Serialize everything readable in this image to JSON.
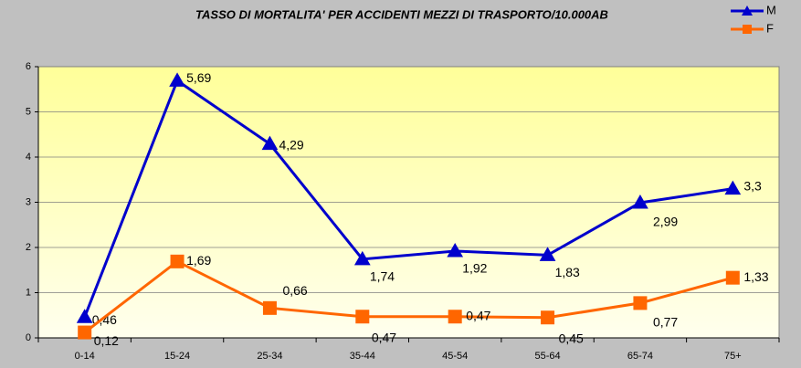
{
  "chart_data": {
    "type": "line",
    "title": "TASSO DI MORTALITA' PER ACCIDENTI MEZZI DI TRASPORTO/10.000AB",
    "categories": [
      "0-14",
      "15-24",
      "25-34",
      "35-44",
      "45-54",
      "55-64",
      "65-74",
      "75+"
    ],
    "series": [
      {
        "name": "M",
        "color": "#0000cc",
        "marker": "triangle",
        "values": [
          0.46,
          5.69,
          4.29,
          1.74,
          1.92,
          1.83,
          2.99,
          3.3
        ],
        "value_labels": [
          "0,46",
          "5,69",
          "4,29",
          "1,74",
          "1,92",
          "1,83",
          "2,99",
          "3,3"
        ]
      },
      {
        "name": "F",
        "color": "#ff6600",
        "marker": "square",
        "values": [
          0.12,
          1.69,
          0.66,
          0.47,
          0.47,
          0.45,
          0.77,
          1.33
        ],
        "value_labels": [
          "0,12",
          "1,69",
          "0,66",
          "0,47",
          "0,47",
          "0,45",
          "0,77",
          "1,33"
        ]
      }
    ],
    "ylim": [
      0,
      6
    ],
    "yticks": [
      0,
      1,
      2,
      3,
      4,
      5,
      6
    ],
    "grid": true,
    "legend": "top-right"
  }
}
